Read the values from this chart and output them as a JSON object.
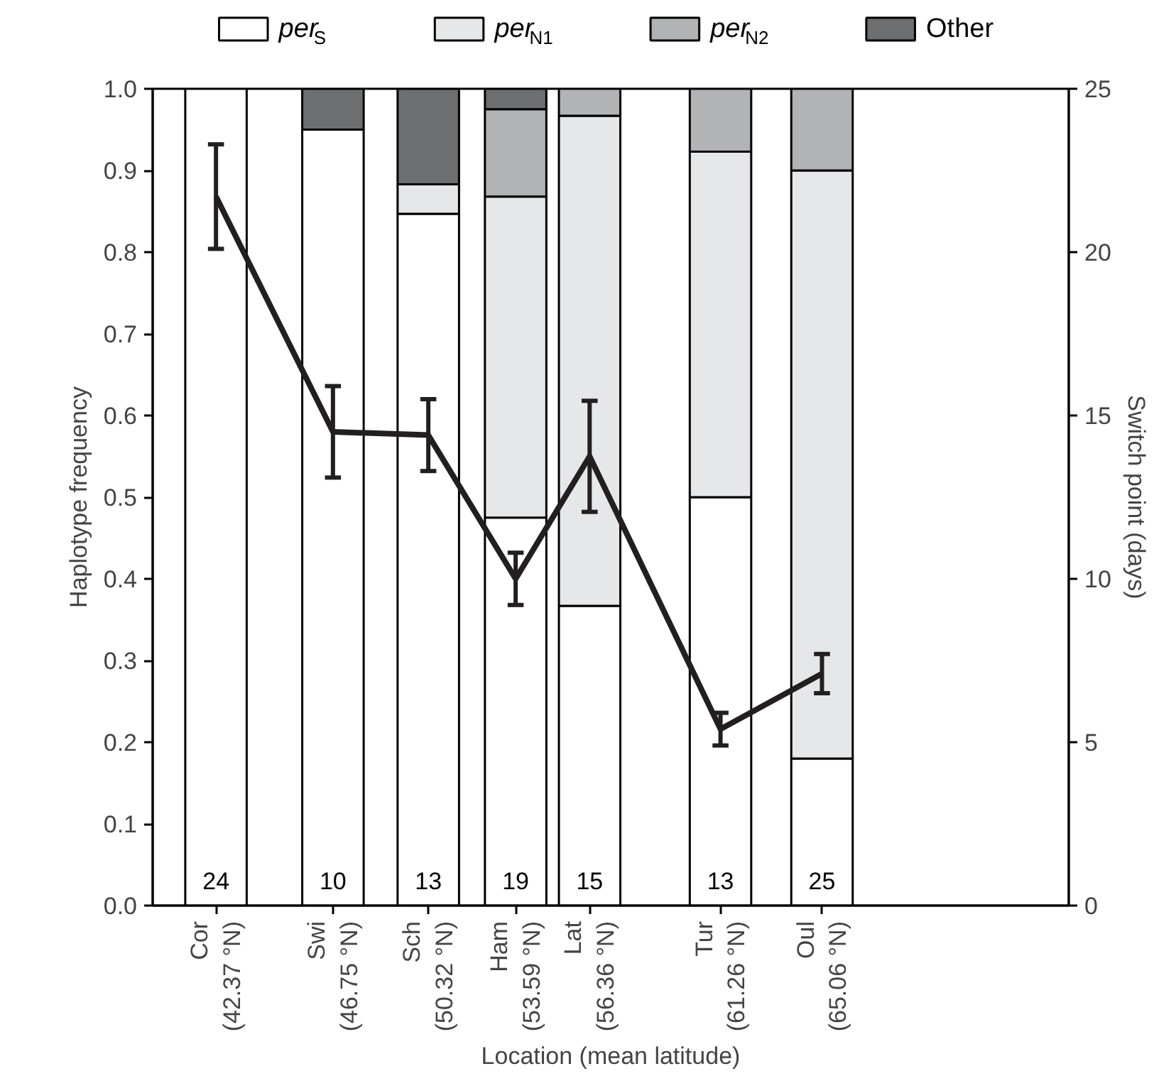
{
  "chart_data": {
    "type": "bar",
    "stacked": true,
    "xlabel": "Location (mean latitude)",
    "ylabel": "Haplotype frequency",
    "y2label": "Switch point (days)",
    "x": [
      42.37,
      46.75,
      50.32,
      53.59,
      56.36,
      61.26,
      65.06
    ],
    "xlim": [
      40,
      74.3
    ],
    "xticks": [
      {
        "value": 42.37,
        "label": "Cor\n(42.37 °N)"
      },
      {
        "value": 46.75,
        "label": "Swi\n(46.75 °N)"
      },
      {
        "value": 50.32,
        "label": "Sch\n(50.32 °N)"
      },
      {
        "value": 53.59,
        "label": "Ham\n(53.59 °N)"
      },
      {
        "value": 56.36,
        "label": "Lat\n(56.36 °N)"
      },
      {
        "value": 61.26,
        "label": "Tur\n(61.26 °N)"
      },
      {
        "value": 65.06,
        "label": "Oul\n(65.06 °N)"
      }
    ],
    "ylim": [
      0,
      1
    ],
    "yticks": [
      {
        "value": 0,
        "label": "0.0"
      },
      0.1,
      0.2,
      0.3,
      0.4,
      0.5,
      0.6,
      0.7,
      0.8,
      0.9,
      {
        "value": 1,
        "label": "1.0"
      }
    ],
    "y2lim": [
      0,
      25
    ],
    "y2ticks": [
      0,
      5,
      10,
      15,
      20,
      25
    ],
    "legend": "top",
    "grid": false,
    "series": [
      {
        "name": "per$_{S}$",
        "color": "#ffffff",
        "values": [
          1.0,
          0.95,
          0.847,
          0.475,
          0.367,
          0.5,
          0.18
        ]
      },
      {
        "name": "per$_{N1}$",
        "color": "#e6e7e8",
        "values": [
          0,
          0,
          0.036,
          0.393,
          0.6,
          0.423,
          0.72
        ]
      },
      {
        "name": "per$_{N2}$",
        "color": "#b1b3b5",
        "values": [
          0,
          0,
          0,
          0.107,
          0.033,
          0.077,
          0.1
        ]
      },
      {
        "name": "Other",
        "color": "#6d6e70",
        "values": [
          0,
          0.05,
          0.117,
          0.025,
          0,
          0,
          0
        ]
      },
      {
        "type": "line",
        "axis": "y2",
        "color": "#231f20",
        "values": [
          21.7,
          14.5,
          14.4,
          10.0,
          13.75,
          5.4,
          7.1
        ],
        "errors": [
          1.6,
          1.4,
          1.1,
          0.8,
          1.7,
          0.5,
          0.6
        ]
      }
    ],
    "annotations": [
      "24",
      "10",
      "13",
      "19",
      "15",
      "13",
      "25"
    ]
  }
}
